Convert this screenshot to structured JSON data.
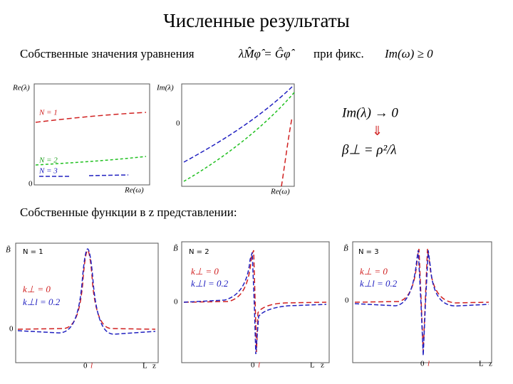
{
  "title": "Численные результаты",
  "eigenvalues": {
    "label": "Собственные значения уравнения",
    "equation": "λM̂φ̂ = Ĝφ̂",
    "condition_prefix": "при фикс.",
    "condition": "Im(ω) ≥ 0"
  },
  "plots_top": [
    {
      "y_label": "Re(λ)",
      "x_label": "Re(ω)",
      "origin": "0",
      "curves": [
        "N = 1",
        "N = 2",
        "N = 3"
      ]
    },
    {
      "y_label": "Im(λ)",
      "x_label": "Re(ω)",
      "origin": "0"
    }
  ],
  "limit": {
    "condition": "Im(λ) → 0",
    "arrow": "⇓",
    "relation": "β⊥ = ρ²/λ"
  },
  "eigenfunctions": {
    "label": "Собственные функции в z представлении:",
    "plots": [
      {
        "y_label": "B̃",
        "mode": "N = 1",
        "legend": [
          "k⊥ = 0",
          "k⊥l = 0.2"
        ],
        "x_ticks": [
          "0",
          "l",
          "L",
          "z"
        ],
        "y_origin": "0"
      },
      {
        "y_label": "B̃",
        "mode": "N = 2",
        "legend": [
          "k⊥ = 0",
          "k⊥l = 0.2"
        ],
        "x_ticks": [
          "0",
          "l",
          "L",
          "z"
        ],
        "y_origin": "0"
      },
      {
        "y_label": "B̃",
        "mode": "N = 3",
        "legend": [
          "k⊥ = 0",
          "k⊥l = 0.2"
        ],
        "x_ticks": [
          "0",
          "l",
          "L",
          "z"
        ],
        "y_origin": "0"
      }
    ]
  }
}
